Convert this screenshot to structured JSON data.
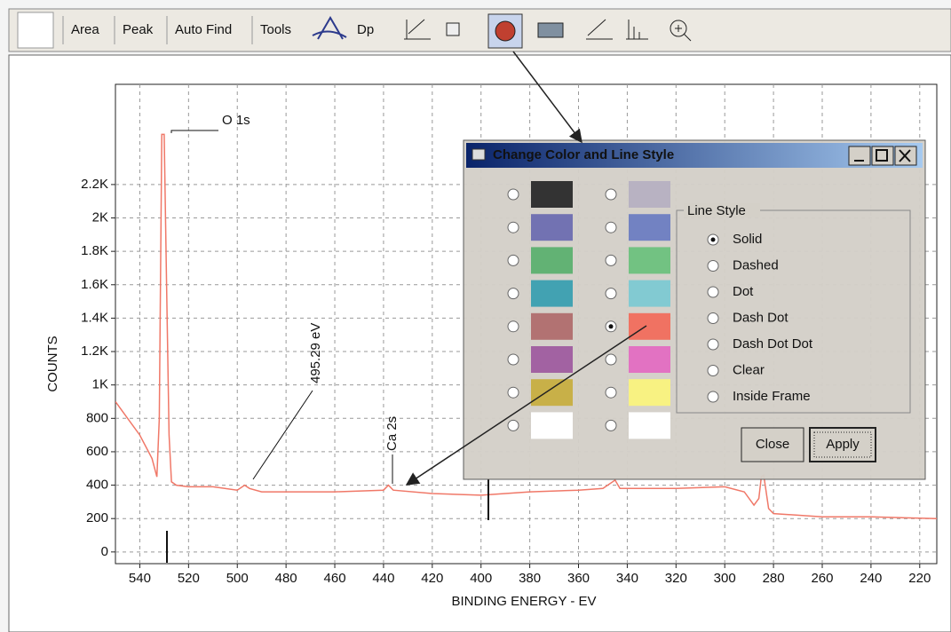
{
  "toolbar": {
    "buttons": [
      "Area",
      "Peak",
      "Auto Find",
      "Tools"
    ],
    "disabled": "Dp"
  },
  "chart_data": {
    "type": "line",
    "x_label": "BINDING ENERGY - EV",
    "y_label": "COUNTS",
    "annotations": [
      "O 1s",
      "495.29 eV",
      "Ca 2s"
    ],
    "x": [
      550,
      545,
      540,
      535,
      533,
      532,
      531,
      530,
      529,
      528,
      527,
      525,
      520,
      510,
      500,
      497,
      495,
      490,
      480,
      460,
      440,
      438,
      436,
      420,
      400,
      380,
      360,
      350,
      345,
      343,
      320,
      300,
      292,
      288,
      286,
      285,
      284,
      282,
      280,
      260,
      240,
      213
    ],
    "series": [
      {
        "color": "#f07868",
        "values": [
          900,
          800,
          700,
          560,
          450,
          800,
          2500,
          2500,
          1600,
          700,
          420,
          400,
          390,
          390,
          370,
          400,
          380,
          360,
          360,
          360,
          370,
          400,
          370,
          350,
          340,
          360,
          370,
          380,
          430,
          380,
          380,
          390,
          360,
          280,
          320,
          450,
          460,
          260,
          230,
          210,
          210,
          200
        ]
      }
    ],
    "xlim": [
      550,
      213
    ],
    "ylim": [
      -70,
      2800
    ],
    "xticks": [
      540,
      520,
      500,
      480,
      460,
      440,
      420,
      400,
      380,
      360,
      340,
      320,
      300,
      280,
      260,
      240,
      220
    ],
    "yticks": [
      0,
      200,
      400,
      600,
      800,
      {
        "value": 1000,
        "label": "1K"
      },
      {
        "value": 1200,
        "label": "1.2K"
      },
      {
        "value": 1400,
        "label": "1.4K"
      },
      {
        "value": 1600,
        "label": "1.6K"
      },
      {
        "value": 1800,
        "label": "1.8K"
      },
      {
        "value": 2000,
        "label": "2K"
      },
      {
        "value": 2200,
        "label": "2.2K"
      }
    ],
    "grid": true
  },
  "dialog": {
    "title": "Change Color and Line Style",
    "colors": {
      "left": [
        "#333333",
        "#7272b2",
        "#62b274",
        "#42a2b2",
        "#b27272",
        "#a262a2",
        "#c8b048",
        "#ffffff"
      ],
      "right": [
        "#b8b2c2",
        "#7282c2",
        "#72c282",
        "#82cad2",
        "#f07262",
        "#e272c2",
        "#f8f282",
        "#ffffff"
      ]
    },
    "selected_color": "#f07262",
    "group_label": "Line Style",
    "options": [
      "Solid",
      "Dashed",
      "Dot",
      "Dash Dot",
      "Dash Dot Dot",
      "Clear",
      "Inside Frame"
    ],
    "selected_option": "Solid",
    "buttons": [
      "Close",
      "Apply"
    ]
  }
}
